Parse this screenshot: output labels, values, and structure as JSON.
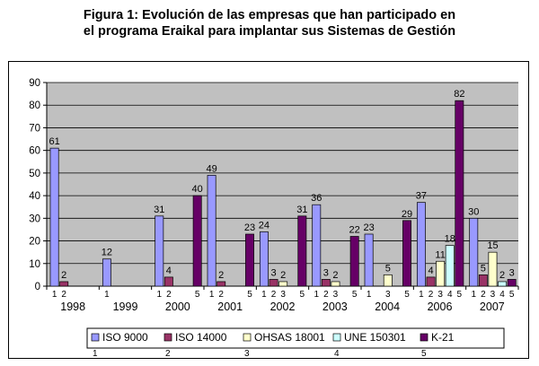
{
  "title_line1": "Figura 1: Evolución de las empresas que han participado en",
  "title_line2": "el programa Eraikal para implantar sus Sistemas de Gestión",
  "colors": {
    "plot_bg": "#c0c0c0",
    "gridline": "#000000",
    "series": [
      "#9999ff",
      "#993366",
      "#ffffcc",
      "#ccffff",
      "#660066"
    ]
  },
  "chart_data": {
    "type": "bar",
    "ylim": [
      0,
      90
    ],
    "yticks": [
      0,
      10,
      20,
      30,
      40,
      50,
      60,
      70,
      80,
      90
    ],
    "grid": true,
    "legend_position": "bottom",
    "categories": [
      "1998",
      "1999",
      "2000",
      "2001",
      "2002",
      "2003",
      "2004",
      "2006",
      "2007"
    ],
    "series": [
      {
        "name": "ISO 9000",
        "code": "1",
        "values": [
          61,
          12,
          31,
          49,
          24,
          36,
          23,
          37,
          30
        ]
      },
      {
        "name": "ISO 14000",
        "code": "2",
        "values": [
          2,
          null,
          4,
          2,
          3,
          3,
          null,
          4,
          5
        ]
      },
      {
        "name": "OHSAS 18001",
        "code": "3",
        "values": [
          null,
          null,
          null,
          null,
          2,
          2,
          5,
          11,
          15
        ]
      },
      {
        "name": "UNE 150301",
        "code": "4",
        "values": [
          null,
          null,
          null,
          null,
          null,
          null,
          null,
          18,
          2
        ]
      },
      {
        "name": "K-21",
        "code": "5",
        "values": [
          null,
          null,
          40,
          23,
          31,
          22,
          29,
          82,
          3
        ]
      }
    ],
    "bar_value_labels": [
      [
        "61",
        "12",
        "31",
        "49",
        "24",
        "36",
        "23",
        "37",
        "30"
      ],
      [
        "2",
        "",
        "4",
        "2",
        "3",
        "3",
        "",
        "4",
        "5"
      ],
      [
        "",
        "",
        "",
        "",
        "2",
        "2",
        "5",
        "11",
        "15"
      ],
      [
        "",
        "",
        "",
        "",
        "",
        "",
        "",
        "18",
        "2"
      ],
      [
        "",
        "",
        "40",
        "23",
        "31",
        "22",
        "29",
        "82",
        "3"
      ]
    ],
    "sub_labels": [
      [
        "1",
        "2"
      ],
      [
        "1"
      ],
      [
        "1",
        "2",
        "5"
      ],
      [
        "1",
        "2",
        "5"
      ],
      [
        "1",
        "2",
        "3",
        "5"
      ],
      [
        "1",
        "2",
        "3",
        "5"
      ],
      [
        "1",
        "3",
        "5"
      ],
      [
        "1",
        "2",
        "3",
        "4",
        "5"
      ],
      [
        "1",
        "2",
        "3",
        "4",
        "5"
      ]
    ]
  }
}
